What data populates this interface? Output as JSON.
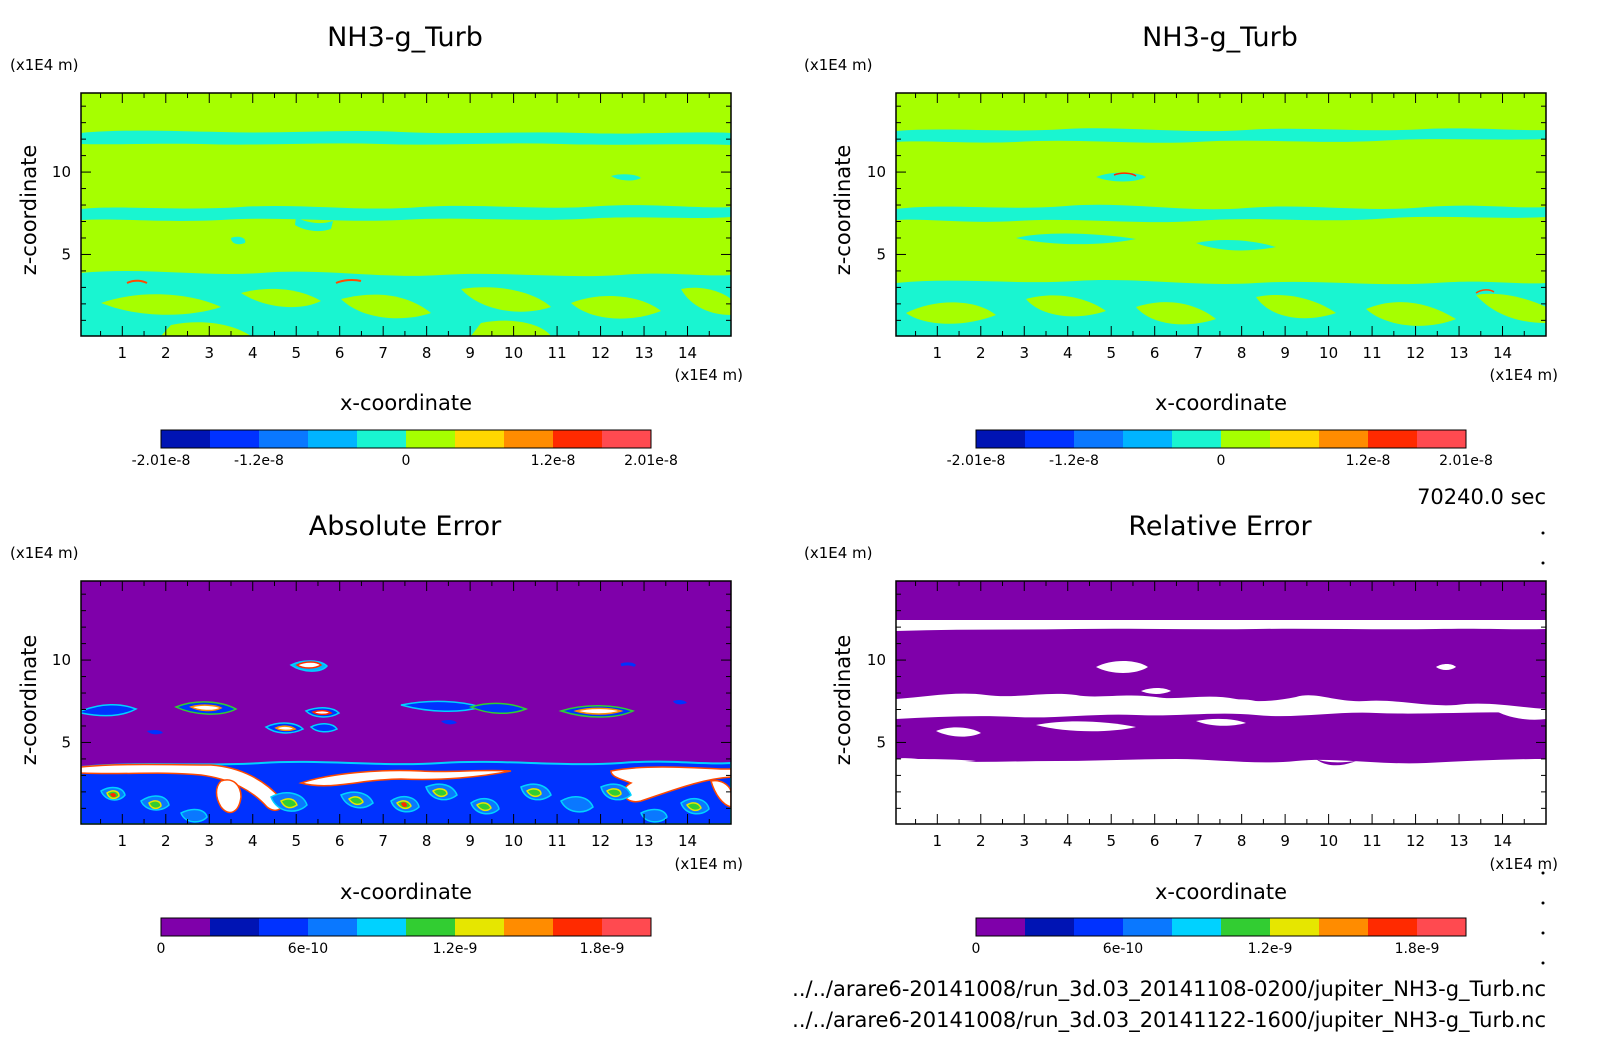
{
  "footer": {
    "time": "70240.0 sec",
    "files": [
      "../../arare6-20141008/run_3d.03_20141108-0200/jupiter_NH3-g_Turb.nc",
      "../../arare6-20141008/run_3d.03_20141122-1600/jupiter_NH3-g_Turb.nc"
    ]
  },
  "colors": {
    "background": "#ffffff",
    "green": "#a6ff00",
    "cyan": "#19f5d1",
    "purple": "#7f00aa",
    "white_region": "#ffffff"
  },
  "chart_data": [
    {
      "type": "heatmap",
      "title": "NH3-g_Turb",
      "xlabel": "x-coordinate",
      "ylabel": "z-coordinate",
      "x_unit": "(x1E4 m)",
      "y_unit": "(x1E4 m)",
      "xlim": [
        0.05,
        15.0
      ],
      "ylim": [
        0.05,
        14.8
      ],
      "xticks": [
        "1",
        "2",
        "3",
        "4",
        "5",
        "6",
        "7",
        "8",
        "9",
        "10",
        "11",
        "12",
        "13",
        "14"
      ],
      "yticks": [
        "5",
        "10"
      ],
      "colorbar": {
        "colors": [
          "#0014b4",
          "#0032ff",
          "#0a78ff",
          "#00b4ff",
          "#19f5d1",
          "#a6ff00",
          "#ffd700",
          "#ff8c00",
          "#ff2a00",
          "#ff4a50"
        ],
        "labels": [
          "-2.01e-8",
          "-1.2e-8",
          "0",
          "1.2e-8",
          "2.01e-8"
        ]
      }
    },
    {
      "type": "heatmap",
      "title": "NH3-g_Turb",
      "xlabel": "x-coordinate",
      "ylabel": "z-coordinate",
      "x_unit": "(x1E4 m)",
      "y_unit": "(x1E4 m)",
      "xlim": [
        0.05,
        15.0
      ],
      "ylim": [
        0.05,
        14.8
      ],
      "xticks": [
        "1",
        "2",
        "3",
        "4",
        "5",
        "6",
        "7",
        "8",
        "9",
        "10",
        "11",
        "12",
        "13",
        "14"
      ],
      "yticks": [
        "5",
        "10"
      ],
      "colorbar": {
        "colors": [
          "#0014b4",
          "#0032ff",
          "#0a78ff",
          "#00b4ff",
          "#19f5d1",
          "#a6ff00",
          "#ffd700",
          "#ff8c00",
          "#ff2a00",
          "#ff4a50"
        ],
        "labels": [
          "-2.01e-8",
          "-1.2e-8",
          "0",
          "1.2e-8",
          "2.01e-8"
        ]
      }
    },
    {
      "type": "heatmap",
      "title": "Absolute Error",
      "xlabel": "x-coordinate",
      "ylabel": "z-coordinate",
      "x_unit": "(x1E4 m)",
      "y_unit": "(x1E4 m)",
      "xlim": [
        0.05,
        15.0
      ],
      "ylim": [
        0.05,
        14.8
      ],
      "xticks": [
        "1",
        "2",
        "3",
        "4",
        "5",
        "6",
        "7",
        "8",
        "9",
        "10",
        "11",
        "12",
        "13",
        "14"
      ],
      "yticks": [
        "5",
        "10"
      ],
      "colorbar": {
        "colors": [
          "#7f00aa",
          "#0014b4",
          "#0032ff",
          "#0a78ff",
          "#00d2ff",
          "#32cd32",
          "#e6e600",
          "#ff8c00",
          "#ff2a00",
          "#ff4a50"
        ],
        "labels": [
          "0",
          "6e-10",
          "1.2e-9",
          "1.8e-9"
        ]
      }
    },
    {
      "type": "heatmap",
      "title": "Relative Error",
      "xlabel": "x-coordinate",
      "ylabel": "z-coordinate",
      "x_unit": "(x1E4 m)",
      "y_unit": "(x1E4 m)",
      "xlim": [
        0.05,
        15.0
      ],
      "ylim": [
        0.05,
        14.8
      ],
      "xticks": [
        "1",
        "2",
        "3",
        "4",
        "5",
        "6",
        "7",
        "8",
        "9",
        "10",
        "11",
        "12",
        "13",
        "14"
      ],
      "yticks": [
        "5",
        "10"
      ],
      "colorbar": {
        "colors": [
          "#7f00aa",
          "#0014b4",
          "#0032ff",
          "#0a78ff",
          "#00d2ff",
          "#32cd32",
          "#e6e600",
          "#ff8c00",
          "#ff2a00",
          "#ff4a50"
        ],
        "labels": [
          "0",
          "6e-10",
          "1.2e-9",
          "1.8e-9"
        ]
      }
    }
  ]
}
